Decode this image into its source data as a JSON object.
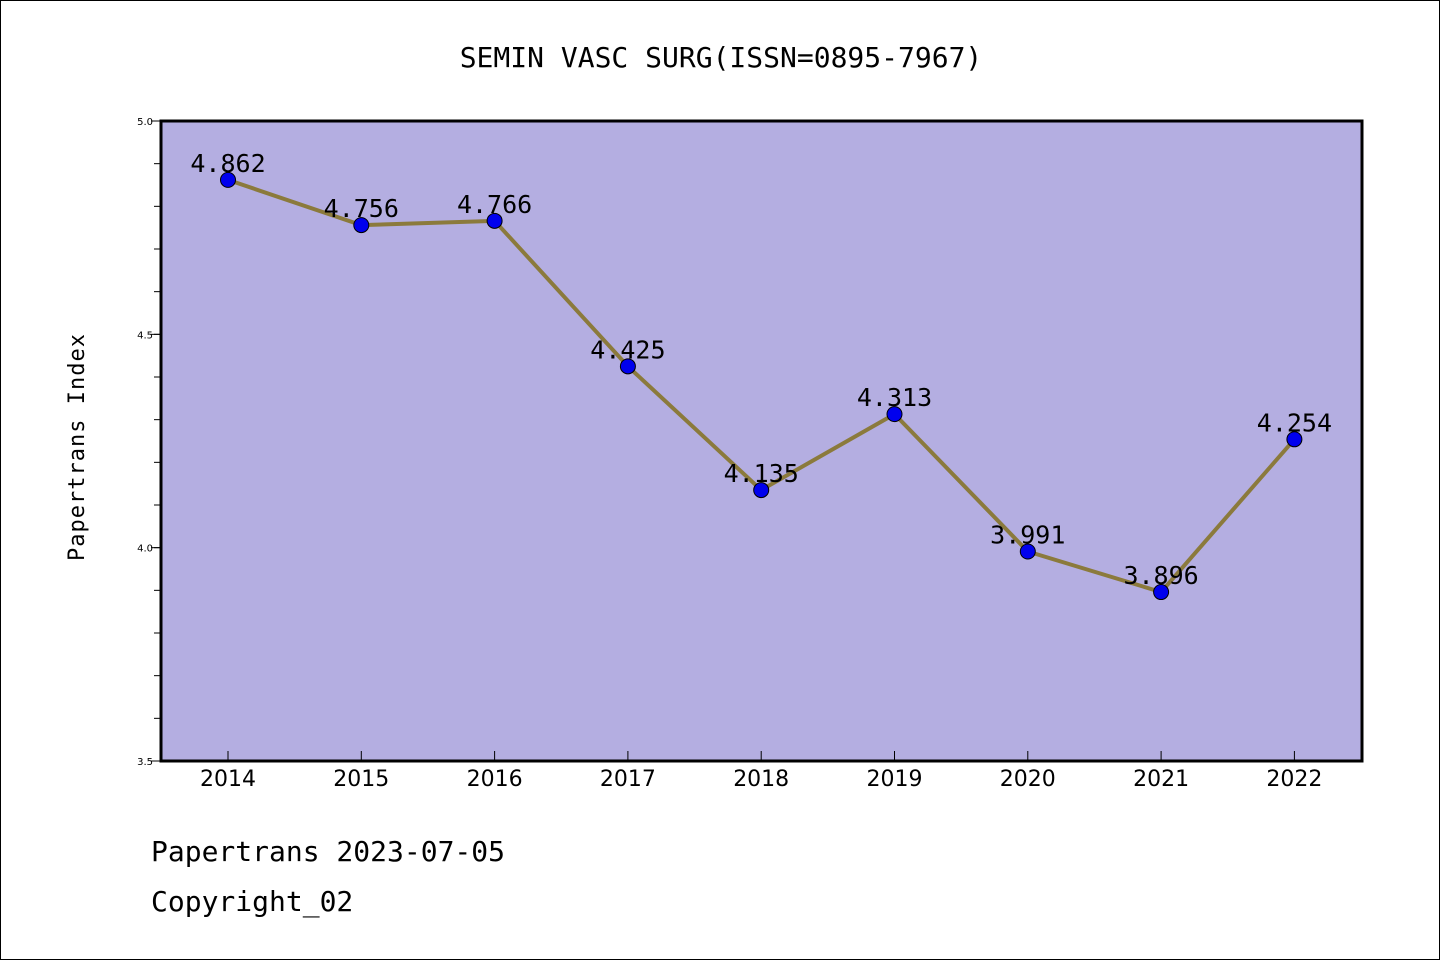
{
  "chart_data": {
    "type": "line",
    "title": "SEMIN VASC SURG(ISSN=0895-7967)",
    "xlabel": "",
    "ylabel": "Papertrans Index",
    "categories": [
      "2014",
      "2015",
      "2016",
      "2017",
      "2018",
      "2019",
      "2020",
      "2021",
      "2022"
    ],
    "series": [
      {
        "values": [
          4.862,
          4.756,
          4.766,
          4.425,
          4.135,
          4.313,
          3.991,
          3.896,
          4.254
        ],
        "data_labels": [
          "4.862",
          "4.756",
          "4.766",
          "4.425",
          "4.135",
          "4.313",
          "3.991",
          "3.896",
          "4.254"
        ],
        "line_color": "#8b7a3c",
        "marker_color": "#0000ee"
      }
    ],
    "ylim": [
      3.5,
      5.0
    ],
    "yticks": [
      "3.5",
      "4.0",
      "4.5",
      "5.0"
    ],
    "plot_background": "#b4aee1",
    "grid": false,
    "legend": "none"
  },
  "footer": {
    "line1": "Papertrans 2023-07-05",
    "line2": "Copyright_02"
  }
}
